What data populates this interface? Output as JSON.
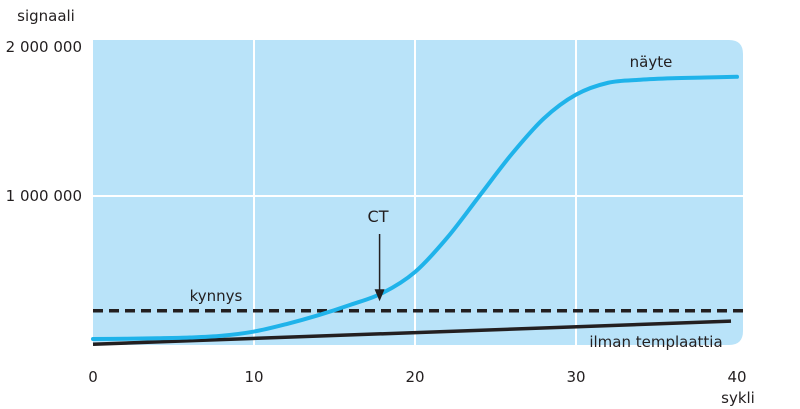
{
  "chart_data": {
    "type": "line",
    "title": "",
    "ylabel": "signaali",
    "xlabel": "sykli",
    "xlim": [
      0,
      40
    ],
    "ylim": [
      0,
      2000000
    ],
    "x_ticks": [
      0,
      10,
      20,
      30,
      40
    ],
    "x_tick_labels": [
      "0",
      "10",
      "20",
      "30",
      "40"
    ],
    "y_ticks": [
      1000000,
      2000000
    ],
    "y_tick_labels": [
      "1 000 000",
      "2 000 000"
    ],
    "grid": true,
    "colors": {
      "background": "#b9e3f9",
      "grid": "#ffffff",
      "sample": "#1fb3ea",
      "baseline": "#231f20",
      "threshold": "#231f20"
    },
    "series": [
      {
        "name": "näyte",
        "x": [
          0,
          2,
          4,
          6,
          8,
          10,
          12,
          14,
          16,
          18,
          20,
          22,
          24,
          26,
          28,
          30,
          32,
          34,
          36,
          38,
          40
        ],
        "y": [
          40000,
          42000,
          45000,
          50000,
          62000,
          90000,
          140000,
          200000,
          270000,
          350000,
          490000,
          720000,
          1000000,
          1280000,
          1520000,
          1680000,
          1760000,
          1780000,
          1790000,
          1795000,
          1800000
        ]
      },
      {
        "name": "ilman templaattia",
        "x": [
          0,
          40
        ],
        "y": [
          5000,
          160000
        ]
      }
    ],
    "threshold": {
      "label": "kynnys",
      "value": 230000
    },
    "annotations": [
      {
        "text": "CT",
        "x": 17.8,
        "y": 280000
      }
    ]
  }
}
